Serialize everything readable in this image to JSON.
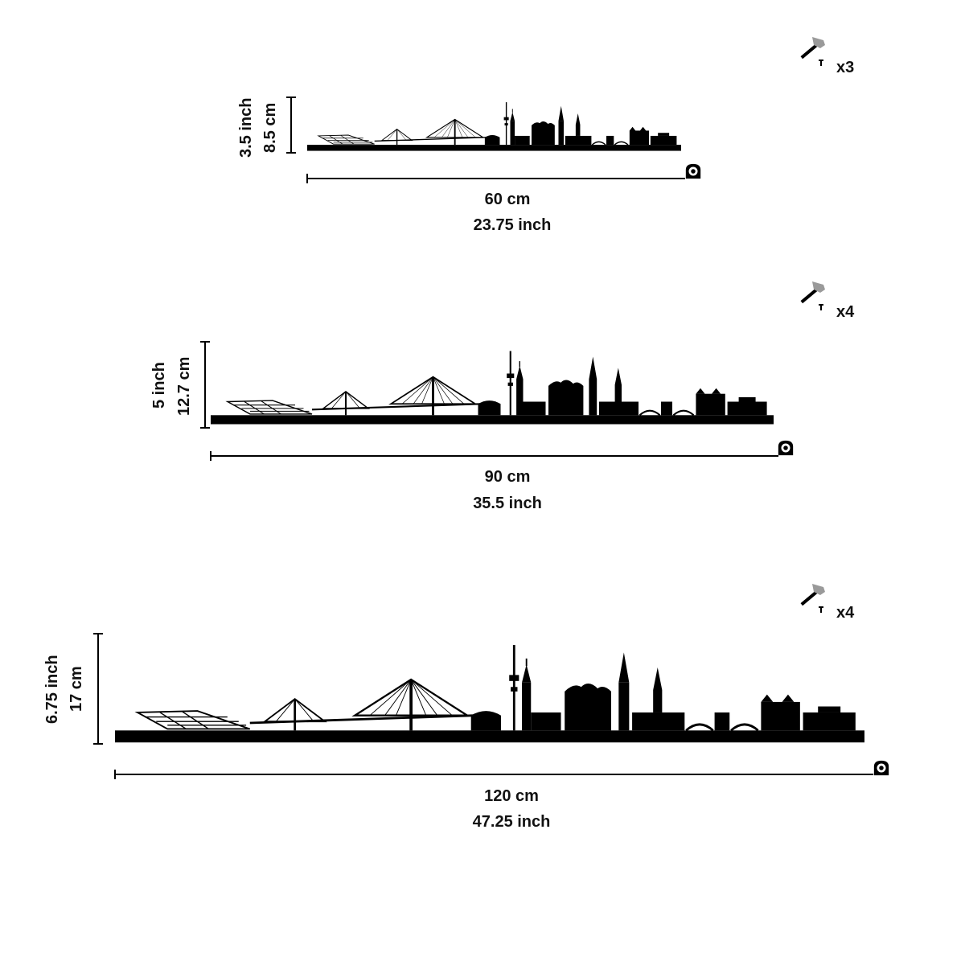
{
  "variants": [
    {
      "id": "small",
      "height_in": "3.5 inch",
      "height_cm": "8.5 cm",
      "width_cm": "60 cm",
      "width_in": "23.75 inch",
      "nails": "x3"
    },
    {
      "id": "medium",
      "height_in": "5 inch",
      "height_cm": "12.7 cm",
      "width_cm": "90 cm",
      "width_in": "35.5 inch",
      "nails": "x4"
    },
    {
      "id": "large",
      "height_in": "6.75 inch",
      "height_cm": "17 cm",
      "width_cm": "120 cm",
      "width_in": "47.25 inch",
      "nails": "x4"
    }
  ],
  "icons": {
    "hammer": "hammer-icon",
    "tape": "tape-measure-icon"
  },
  "colors": {
    "silhouette": "#000000",
    "hammer_head": "#9a9a9a",
    "background": "#ffffff"
  }
}
